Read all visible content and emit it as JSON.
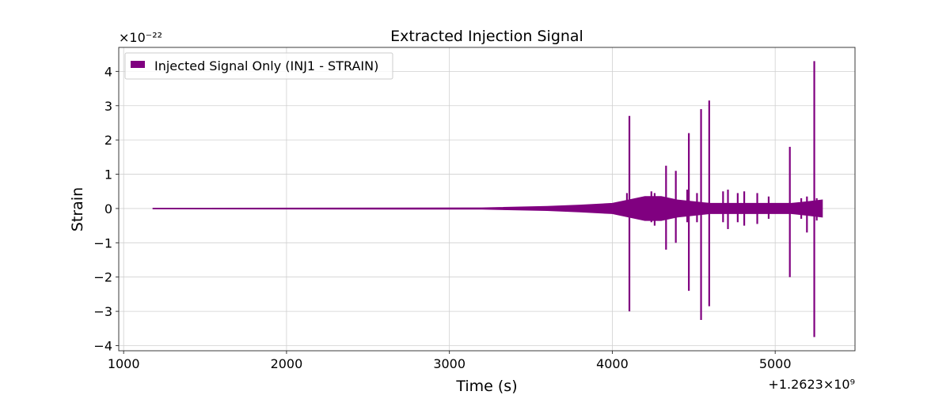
{
  "chart_data": {
    "type": "line",
    "title": "Extracted Injection Signal",
    "xlabel": "Time (s)",
    "ylabel": "Strain",
    "xlim": [
      970,
      5490
    ],
    "ylim": [
      -4.15,
      4.7
    ],
    "x_ticks": [
      1000,
      2000,
      3000,
      4000,
      5000
    ],
    "x_tick_labels": [
      "1000",
      "2000",
      "3000",
      "4000",
      "5000"
    ],
    "y_ticks": [
      -4,
      -3,
      -2,
      -1,
      0,
      1,
      2,
      3,
      4
    ],
    "y_tick_labels": [
      "−4",
      "−3",
      "−2",
      "−1",
      "0",
      "1",
      "2",
      "3",
      "4"
    ],
    "y_scale_exponent_text": "×10⁻²²",
    "x_offset_text": "+1.2623×10⁹",
    "grid": true,
    "legend_position": "top-left",
    "series": [
      {
        "name": "Injected Signal Only (INJ1 - STRAIN)",
        "color": "#800080",
        "x_range": [
          1180,
          5290
        ],
        "envelope": {
          "x": [
            1180,
            3200,
            3600,
            3800,
            4000,
            4100,
            4200,
            4300,
            4400,
            4500,
            4600,
            4700,
            4800,
            4900,
            5000,
            5100,
            5200,
            5290
          ],
          "upper": [
            0.01,
            0.02,
            0.06,
            0.1,
            0.15,
            0.25,
            0.35,
            0.35,
            0.25,
            0.2,
            0.15,
            0.15,
            0.15,
            0.15,
            0.15,
            0.15,
            0.2,
            0.25
          ],
          "lower": [
            -0.01,
            -0.02,
            -0.06,
            -0.1,
            -0.15,
            -0.25,
            -0.35,
            -0.35,
            -0.25,
            -0.2,
            -0.15,
            -0.15,
            -0.15,
            -0.15,
            -0.15,
            -0.15,
            -0.2,
            -0.25
          ]
        },
        "spikes": [
          {
            "x": 4090,
            "max": 0.45,
            "min": -0.2
          },
          {
            "x": 4105,
            "max": 2.7,
            "min": -3.0
          },
          {
            "x": 4240,
            "max": 0.5,
            "min": -0.4
          },
          {
            "x": 4260,
            "max": 0.45,
            "min": -0.5
          },
          {
            "x": 4330,
            "max": 1.25,
            "min": -1.2
          },
          {
            "x": 4390,
            "max": 1.1,
            "min": -1.0
          },
          {
            "x": 4460,
            "max": 0.55,
            "min": -0.4
          },
          {
            "x": 4470,
            "max": 2.2,
            "min": -2.4
          },
          {
            "x": 4520,
            "max": 0.45,
            "min": -0.4
          },
          {
            "x": 4545,
            "max": 2.9,
            "min": -3.25
          },
          {
            "x": 4595,
            "max": 3.15,
            "min": -2.85
          },
          {
            "x": 4680,
            "max": 0.5,
            "min": -0.4
          },
          {
            "x": 4710,
            "max": 0.55,
            "min": -0.6
          },
          {
            "x": 4770,
            "max": 0.45,
            "min": -0.4
          },
          {
            "x": 4810,
            "max": 0.5,
            "min": -0.5
          },
          {
            "x": 4890,
            "max": 0.45,
            "min": -0.45
          },
          {
            "x": 4960,
            "max": 0.35,
            "min": -0.3
          },
          {
            "x": 5090,
            "max": 1.8,
            "min": -2.0
          },
          {
            "x": 5160,
            "max": 0.3,
            "min": -0.3
          },
          {
            "x": 5195,
            "max": 0.35,
            "min": -0.7
          },
          {
            "x": 5240,
            "max": 4.3,
            "min": -3.75
          },
          {
            "x": 5255,
            "max": 0.3,
            "min": -0.35
          }
        ]
      }
    ]
  }
}
